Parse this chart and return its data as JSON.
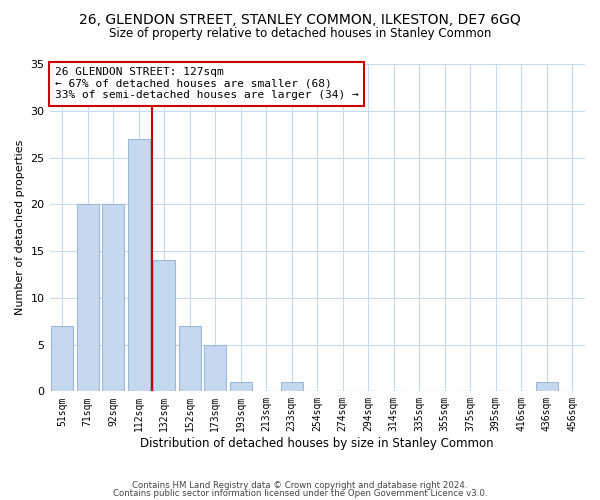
{
  "title_line1": "26, GLENDON STREET, STANLEY COMMON, ILKESTON, DE7 6GQ",
  "title_line2": "Size of property relative to detached houses in Stanley Common",
  "bar_labels": [
    "51sqm",
    "71sqm",
    "92sqm",
    "112sqm",
    "132sqm",
    "152sqm",
    "173sqm",
    "193sqm",
    "213sqm",
    "233sqm",
    "254sqm",
    "274sqm",
    "294sqm",
    "314sqm",
    "335sqm",
    "355sqm",
    "375sqm",
    "395sqm",
    "416sqm",
    "436sqm",
    "456sqm"
  ],
  "bar_values": [
    7,
    20,
    20,
    27,
    14,
    7,
    5,
    1,
    0,
    1,
    0,
    0,
    0,
    0,
    0,
    0,
    0,
    0,
    0,
    1,
    0
  ],
  "bar_color": "#c5d8f0",
  "bar_edge_color": "#a0b8d8",
  "vline_x": 3.5,
  "vline_color": "#cc0000",
  "annotation_text": "26 GLENDON STREET: 127sqm\n← 67% of detached houses are smaller (68)\n33% of semi-detached houses are larger (34) →",
  "annotation_box_color": "#ffffff",
  "annotation_box_edge": "#cc0000",
  "xlabel": "Distribution of detached houses by size in Stanley Common",
  "ylabel": "Number of detached properties",
  "ylim": [
    0,
    35
  ],
  "yticks": [
    0,
    5,
    10,
    15,
    20,
    25,
    30,
    35
  ],
  "footnote1": "Contains HM Land Registry data © Crown copyright and database right 2024.",
  "footnote2": "Contains public sector information licensed under the Open Government Licence v3.0.",
  "background_color": "#ffffff",
  "grid_color": "#c8daf0"
}
